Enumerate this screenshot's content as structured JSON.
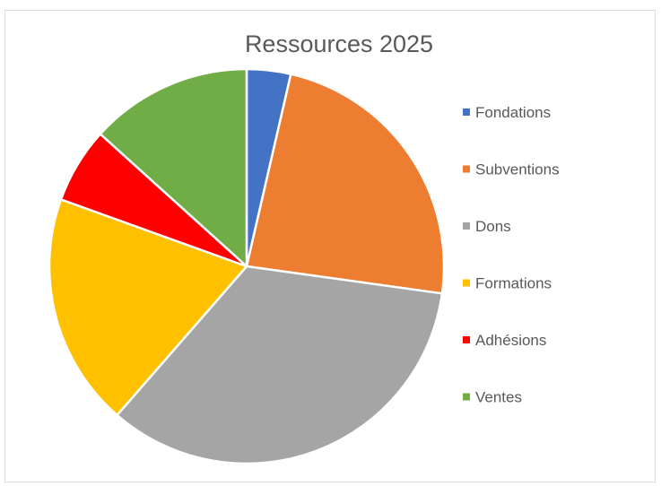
{
  "chart_data": {
    "type": "pie",
    "title": "Ressources 2025",
    "categories": [
      "Fondations",
      "Subventions",
      "Dons",
      "Formations",
      "Adhésions",
      "Ventes"
    ],
    "values": [
      3.6,
      23.6,
      34.2,
      19.1,
      6.2,
      13.3
    ],
    "colors": [
      "#4472c4",
      "#ed7d31",
      "#a5a5a5",
      "#ffc000",
      "#ff0000",
      "#70ad47"
    ],
    "legend": "right"
  }
}
